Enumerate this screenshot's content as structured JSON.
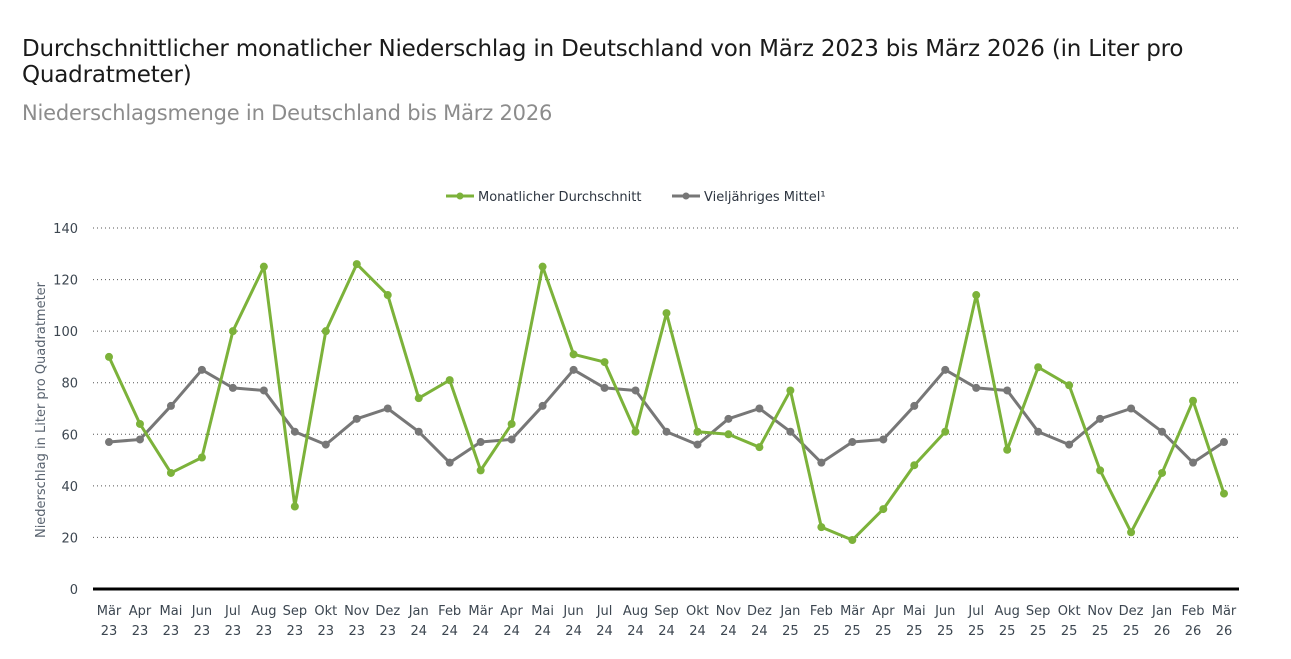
{
  "header": {
    "title": "Durchschnittlicher monatlicher Niederschlag in Deutschland von März 2023 bis März 2026 (in Liter pro Quadratmeter)",
    "subtitle": "Niederschlagsmenge in Deutschland bis März 2026"
  },
  "colors": {
    "series_green": "#7cb23a",
    "series_grey": "#777777",
    "axis": "#000000",
    "grid": "#555555"
  },
  "chart_data": {
    "type": "line",
    "title": "Durchschnittlicher monatlicher Niederschlag in Deutschland von März 2023 bis März 2026 (in Liter pro Quadratmeter)",
    "subtitle": "Niederschlagsmenge in Deutschland bis März 2026",
    "xlabel": "",
    "ylabel": "Niederschlag in Liter pro Quadratmeter",
    "ylim": [
      0,
      140
    ],
    "yticks": [
      0,
      20,
      40,
      60,
      80,
      100,
      120,
      140
    ],
    "grid": true,
    "legend_position": "top-center",
    "categories": [
      [
        "Mär",
        "23"
      ],
      [
        "Apr",
        "23"
      ],
      [
        "Mai",
        "23"
      ],
      [
        "Jun",
        "23"
      ],
      [
        "Jul",
        "23"
      ],
      [
        "Aug",
        "23"
      ],
      [
        "Sep",
        "23"
      ],
      [
        "Okt",
        "23"
      ],
      [
        "Nov",
        "23"
      ],
      [
        "Dez",
        "23"
      ],
      [
        "Jan",
        "24"
      ],
      [
        "Feb",
        "24"
      ],
      [
        "Mär",
        "24"
      ],
      [
        "Apr",
        "24"
      ],
      [
        "Mai",
        "24"
      ],
      [
        "Jun",
        "24"
      ],
      [
        "Jul",
        "24"
      ],
      [
        "Aug",
        "24"
      ],
      [
        "Sep",
        "24"
      ],
      [
        "Okt",
        "24"
      ],
      [
        "Nov",
        "24"
      ],
      [
        "Dez",
        "24"
      ],
      [
        "Jan",
        "25"
      ],
      [
        "Feb",
        "25"
      ],
      [
        "Mär",
        "25"
      ],
      [
        "Apr",
        "25"
      ],
      [
        "Mai",
        "25"
      ],
      [
        "Jun",
        "25"
      ],
      [
        "Jul",
        "25"
      ],
      [
        "Aug",
        "25"
      ],
      [
        "Sep",
        "25"
      ],
      [
        "Okt",
        "25"
      ],
      [
        "Nov",
        "25"
      ],
      [
        "Dez",
        "25"
      ],
      [
        "Jan",
        "26"
      ],
      [
        "Feb",
        "26"
      ],
      [
        "Mär",
        "26"
      ]
    ],
    "series": [
      {
        "name": "Monatlicher Durchschnitt",
        "color": "#7cb23a",
        "values": [
          90,
          64,
          45,
          51,
          100,
          125,
          32,
          100,
          126,
          114,
          74,
          81,
          46,
          64,
          125,
          91,
          88,
          61,
          107,
          61,
          60,
          55,
          77,
          24,
          19,
          31,
          48,
          61,
          114,
          54,
          86,
          79,
          46,
          22,
          45,
          73,
          37
        ]
      },
      {
        "name": "Vieljähriges Mittel¹",
        "color": "#777777",
        "values": [
          57,
          58,
          71,
          85,
          78,
          77,
          61,
          56,
          66,
          70,
          61,
          49,
          57,
          58,
          71,
          85,
          78,
          77,
          61,
          56,
          66,
          70,
          61,
          49,
          57,
          58,
          71,
          85,
          78,
          77,
          61,
          56,
          66,
          70,
          61,
          49,
          57
        ]
      }
    ]
  }
}
